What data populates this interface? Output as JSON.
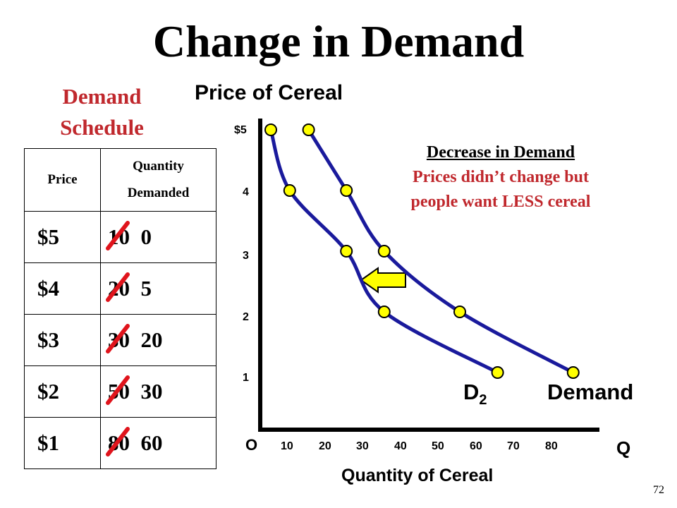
{
  "title": "Change in Demand",
  "schedule": {
    "title_line1": "Demand",
    "title_line2": "Schedule",
    "col_price": "Price",
    "col_qty_line1": "Quantity",
    "col_qty_line2": "Demanded",
    "rows": [
      {
        "price": "$5",
        "old_qty": "10",
        "new_qty": "0"
      },
      {
        "price": "$4",
        "old_qty": "20",
        "new_qty": "5"
      },
      {
        "price": "$3",
        "old_qty": "30",
        "new_qty": "20"
      },
      {
        "price": "$2",
        "old_qty": "50",
        "new_qty": "30"
      },
      {
        "price": "$1",
        "old_qty": "80",
        "new_qty": "60"
      }
    ]
  },
  "graph": {
    "y_title": "Price of Cereal",
    "x_title": "Quantity of Cereal",
    "origin_label": "O",
    "x_axis_letter": "Q",
    "y_ticks": [
      "$5",
      "4",
      "3",
      "2",
      "1"
    ],
    "x_ticks": [
      "10",
      "20",
      "30",
      "40",
      "50",
      "60",
      "70",
      "80"
    ],
    "curve_original_label": "Demand",
    "curve_new_label_base": "D",
    "curve_new_label_sub": "2"
  },
  "annotation": {
    "heading": "Decrease in Demand",
    "line1": "Prices didn’t change but",
    "line2": "people want LESS cereal"
  },
  "slide_number": "72",
  "colors": {
    "curve": "#1a1a9c",
    "point_fill": "#ffff00",
    "arrow_fill": "#ffff00",
    "x_mark": "#e0141c",
    "accent_text": "#c0282d"
  },
  "chart_data": {
    "type": "line",
    "xlabel": "Quantity of Cereal",
    "ylabel": "Price of Cereal",
    "xlim": [
      0,
      80
    ],
    "ylim": [
      0,
      5
    ],
    "series": [
      {
        "name": "Demand",
        "x": [
          10,
          20,
          30,
          50,
          80
        ],
        "y": [
          5,
          4,
          3,
          2,
          1
        ]
      },
      {
        "name": "D2",
        "x": [
          0,
          5,
          20,
          30,
          60
        ],
        "y": [
          5,
          4,
          3,
          2,
          1
        ]
      }
    ]
  }
}
